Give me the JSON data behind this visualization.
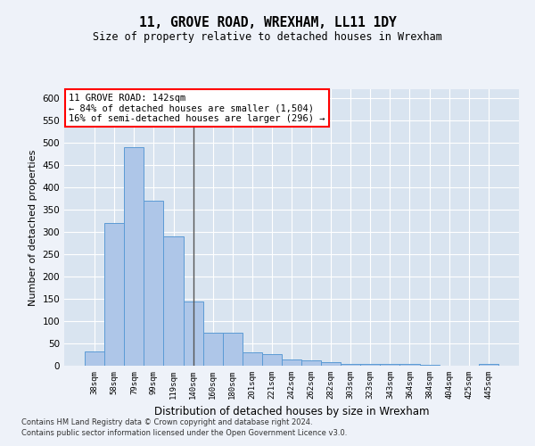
{
  "title": "11, GROVE ROAD, WREXHAM, LL11 1DY",
  "subtitle": "Size of property relative to detached houses in Wrexham",
  "xlabel": "Distribution of detached houses by size in Wrexham",
  "ylabel": "Number of detached properties",
  "categories": [
    "38sqm",
    "58sqm",
    "79sqm",
    "99sqm",
    "119sqm",
    "140sqm",
    "160sqm",
    "180sqm",
    "201sqm",
    "221sqm",
    "242sqm",
    "262sqm",
    "282sqm",
    "303sqm",
    "323sqm",
    "343sqm",
    "364sqm",
    "384sqm",
    "404sqm",
    "425sqm",
    "445sqm"
  ],
  "values": [
    32,
    320,
    490,
    370,
    290,
    145,
    75,
    75,
    30,
    27,
    15,
    12,
    8,
    5,
    5,
    5,
    5,
    3,
    0,
    0,
    5
  ],
  "bar_color": "#aec6e8",
  "bar_edge_color": "#5b9bd5",
  "property_line_idx": 5,
  "annotation_line1": "11 GROVE ROAD: 142sqm",
  "annotation_line2": "← 84% of detached houses are smaller (1,504)",
  "annotation_line3": "16% of semi-detached houses are larger (296) →",
  "footer_line1": "Contains HM Land Registry data © Crown copyright and database right 2024.",
  "footer_line2": "Contains public sector information licensed under the Open Government Licence v3.0.",
  "ylim": [
    0,
    620
  ],
  "yticks": [
    0,
    50,
    100,
    150,
    200,
    250,
    300,
    350,
    400,
    450,
    500,
    550,
    600
  ],
  "background_color": "#eef2f9",
  "plot_bg_color": "#d9e4f0"
}
